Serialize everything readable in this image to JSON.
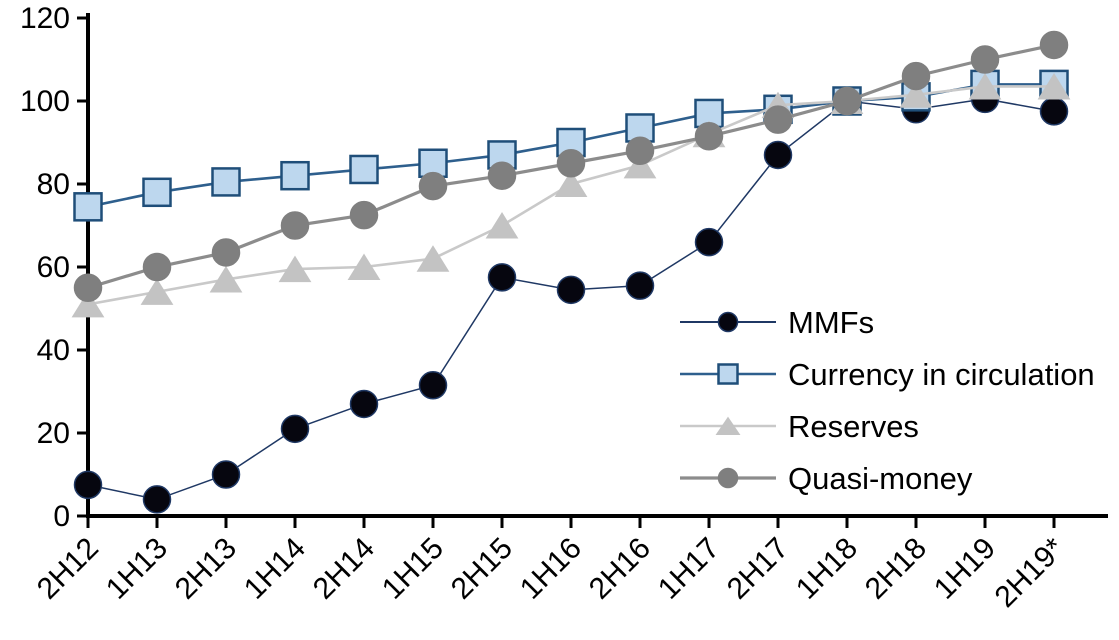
{
  "chart_data": {
    "type": "line",
    "title": "",
    "xlabel": "",
    "ylabel": "",
    "categories": [
      "2H12",
      "1H13",
      "2H13",
      "1H14",
      "2H14",
      "1H15",
      "2H15",
      "1H16",
      "2H16",
      "1H17",
      "2H17",
      "1H18",
      "2H18",
      "1H19",
      "2H19*"
    ],
    "series": [
      {
        "name": "MMFs",
        "marker": "circle",
        "marker_size": 27,
        "fill": "#06060f",
        "stroke": "#1f3864",
        "line_color": "#1f3864",
        "line_width": 1.5,
        "values": [
          7.5,
          4,
          10,
          21,
          27,
          31.5,
          57.5,
          54.5,
          55.5,
          66,
          87,
          100,
          98,
          100.5,
          97.5
        ]
      },
      {
        "name": "Currency in circulation",
        "marker": "square",
        "marker_size": 27,
        "fill": "#bdd7ee",
        "stroke": "#1f4e79",
        "line_color": "#2e5f8d",
        "line_width": 2.6,
        "values": [
          74.5,
          78,
          80.5,
          82,
          83.5,
          85,
          87,
          90,
          93.5,
          97,
          98,
          100,
          101,
          104,
          104
        ]
      },
      {
        "name": "Reserves",
        "marker": "triangle",
        "marker_size": 27,
        "fill": "#c3c3c3",
        "stroke": "#c3c3c3",
        "line_color": "#c9c9c9",
        "line_width": 2.6,
        "values": [
          51,
          54,
          57,
          59.5,
          60,
          62,
          70,
          80,
          84.5,
          92,
          99,
          100,
          101.5,
          103.5,
          103.5
        ]
      },
      {
        "name": "Quasi-money",
        "marker": "circle",
        "marker_size": 27,
        "fill": "#7f7f7f",
        "stroke": "#7f7f7f",
        "line_color": "#8c8c8c",
        "line_width": 3.2,
        "values": [
          55,
          60,
          63.5,
          70,
          72.5,
          79.5,
          82,
          85,
          88,
          91.5,
          95.5,
          100,
          106,
          110,
          113.5
        ]
      }
    ],
    "ylim": [
      0,
      120
    ],
    "yticks": [
      0,
      20,
      40,
      60,
      80,
      100,
      120
    ],
    "grid": false,
    "legend_position": "inside-right",
    "axis_color": "#000000",
    "tick_label_color": "#000000",
    "x_tick_rotation_deg": -45
  }
}
